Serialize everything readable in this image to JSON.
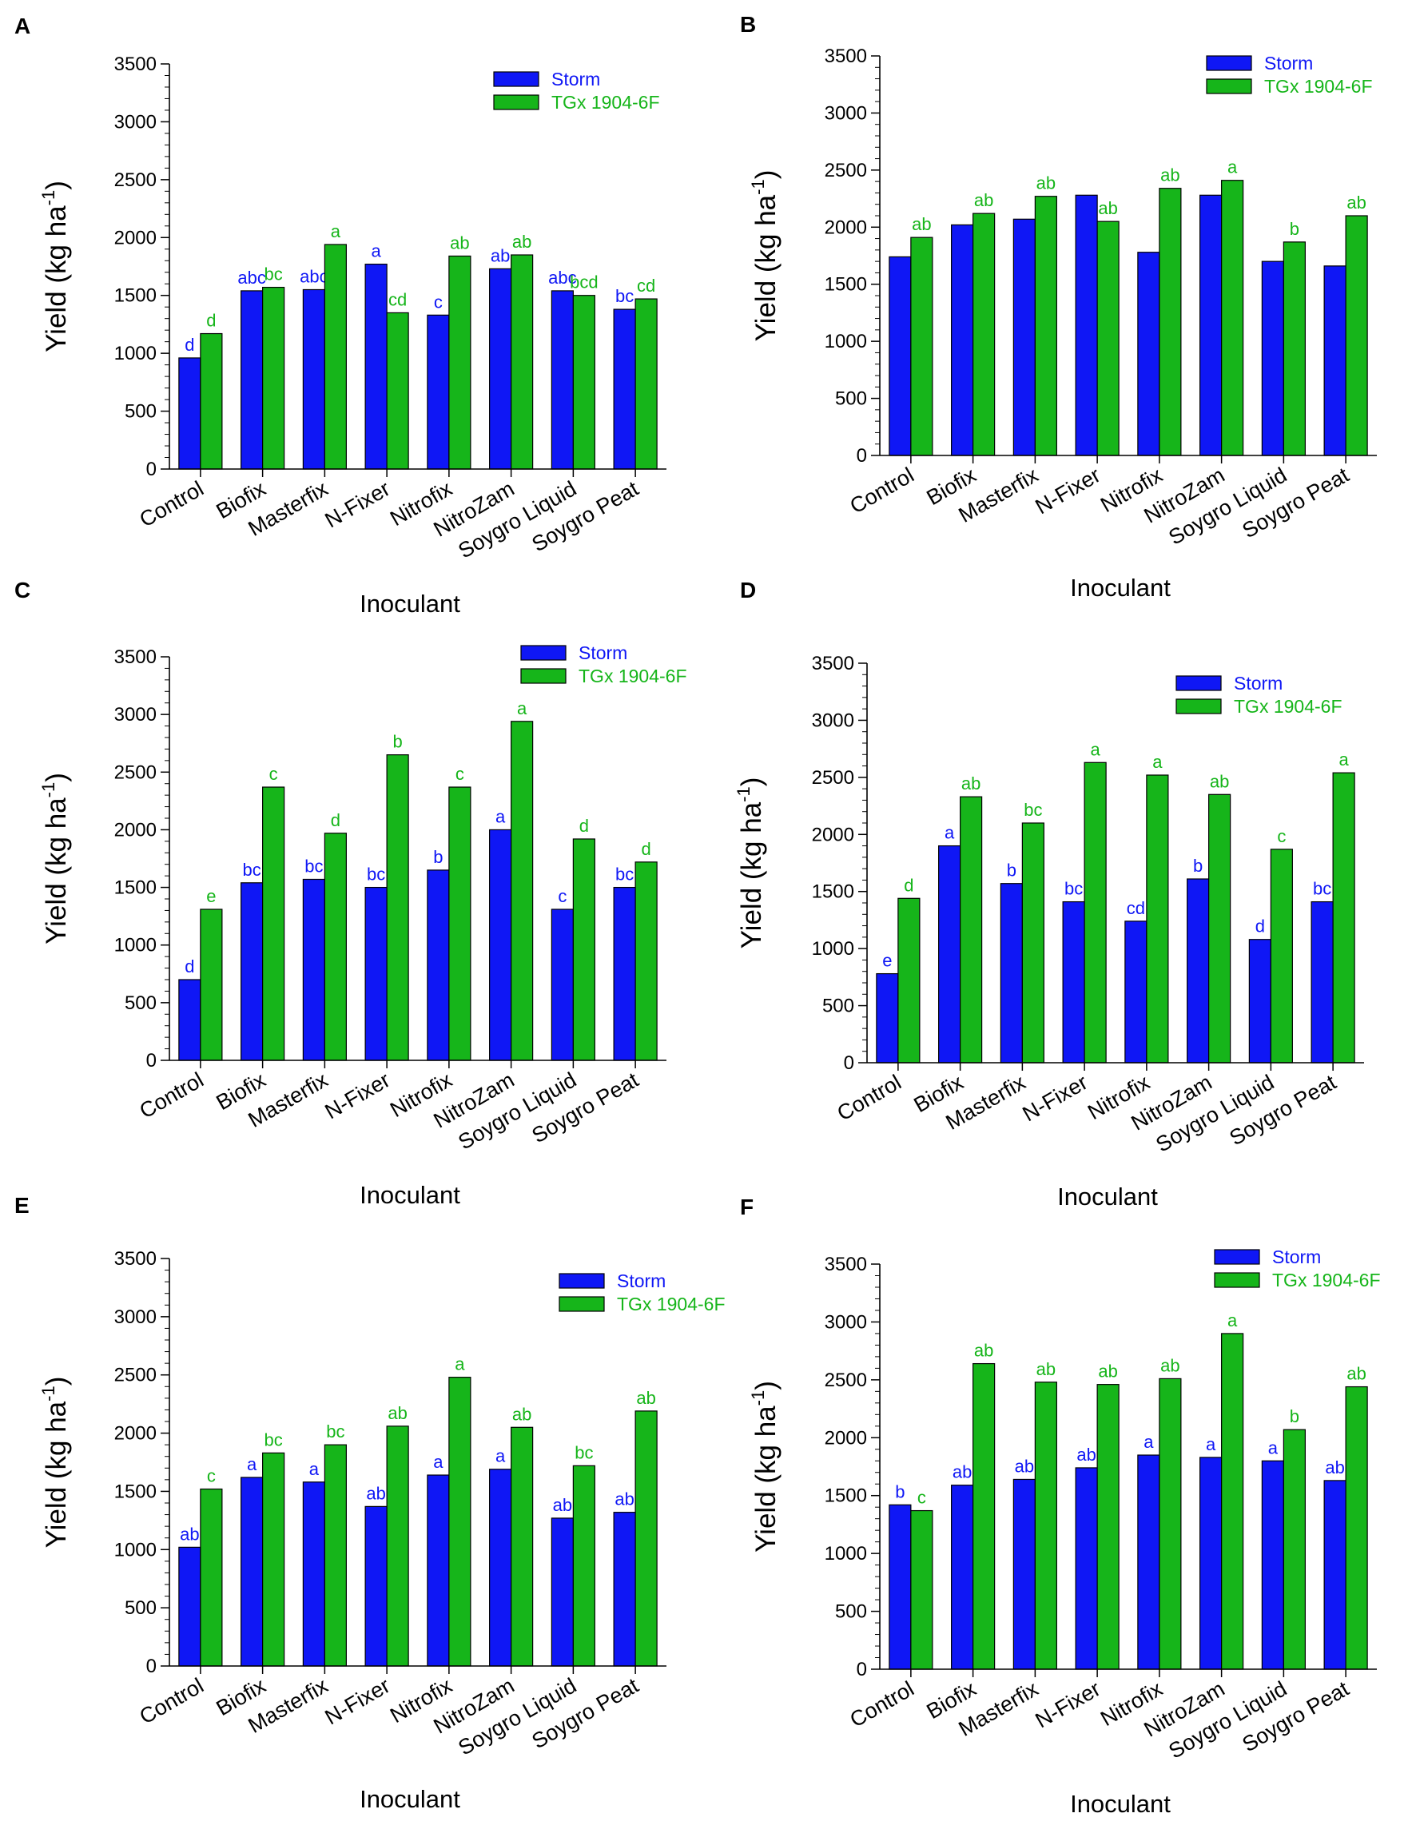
{
  "figure": {
    "series_colors": {
      "storm": "#0f17f5",
      "tgx": "#16b51a"
    }
  },
  "chart_data": [
    {
      "panel": "A",
      "type": "bar",
      "ylabel": "Yield (kg ha",
      "ylabel_sup": "-1",
      "ylabel_close": ")",
      "xlabel": "Inoculant",
      "ylim": [
        0,
        3500
      ],
      "yticks": [
        "0",
        "500",
        "1000",
        "1500",
        "2000",
        "2500",
        "3000",
        "3500"
      ],
      "categories": [
        "Control",
        "Biofix",
        "Masterfix",
        "N-Fixer",
        "Nitrofix",
        "NitroZam",
        "Soygro Liquid",
        "Soygro Peat"
      ],
      "series": [
        {
          "name": "Storm",
          "values": [
            960,
            1540,
            1550,
            1770,
            1330,
            1730,
            1540,
            1380
          ],
          "letters": [
            "d",
            "abc",
            "abc",
            "a",
            "c",
            "ab",
            "abc",
            "bc"
          ]
        },
        {
          "name": "TGx 1904-6F",
          "values": [
            1170,
            1570,
            1940,
            1350,
            1840,
            1850,
            1500,
            1470
          ],
          "letters": [
            "d",
            "bc",
            "a",
            "cd",
            "ab",
            "ab",
            "bcd",
            "cd"
          ]
        }
      ]
    },
    {
      "panel": "B",
      "type": "bar",
      "ylabel": "Yield (kg ha",
      "ylabel_sup": "-1",
      "ylabel_close": ")",
      "xlabel": "Inoculant",
      "ylim": [
        0,
        3500
      ],
      "yticks": [
        "0",
        "500",
        "1000",
        "1500",
        "2000",
        "2500",
        "3000",
        "3500"
      ],
      "categories": [
        "Control",
        "Biofix",
        "Masterfix",
        "N-Fixer",
        "Nitrofix",
        "NitroZam",
        "Soygro Liquid",
        "Soygro Peat"
      ],
      "series": [
        {
          "name": "Storm",
          "values": [
            1740,
            2020,
            2070,
            2280,
            1780,
            2280,
            1700,
            1660
          ],
          "letters": [
            "",
            "",
            "",
            "",
            "",
            "",
            "",
            ""
          ]
        },
        {
          "name": "TGx 1904-6F",
          "values": [
            1910,
            2120,
            2270,
            2050,
            2340,
            2410,
            1870,
            2100
          ],
          "letters": [
            "ab",
            "ab",
            "ab",
            "ab",
            "ab",
            "a",
            "b",
            "ab"
          ]
        }
      ]
    },
    {
      "panel": "C",
      "type": "bar",
      "ylabel": "Yield (kg ha",
      "ylabel_sup": "-1",
      "ylabel_close": ")",
      "xlabel": "Inoculant",
      "ylim": [
        0,
        3500
      ],
      "yticks": [
        "0",
        "500",
        "1000",
        "1500",
        "2000",
        "2500",
        "3000",
        "3500"
      ],
      "categories": [
        "Control",
        "Biofix",
        "Masterfix",
        "N-Fixer",
        "Nitrofix",
        "NitroZam",
        "Soygro Liquid",
        "Soygro Peat"
      ],
      "series": [
        {
          "name": "Storm",
          "values": [
            700,
            1540,
            1570,
            1500,
            1650,
            2000,
            1310,
            1500
          ],
          "letters": [
            "d",
            "bc",
            "bc",
            "bc",
            "b",
            "a",
            "c",
            "bc"
          ]
        },
        {
          "name": "TGx 1904-6F",
          "values": [
            1310,
            2370,
            1970,
            2650,
            2370,
            2940,
            1920,
            1720
          ],
          "letters": [
            "e",
            "c",
            "d",
            "b",
            "c",
            "a",
            "d",
            "d"
          ]
        }
      ]
    },
    {
      "panel": "D",
      "type": "bar",
      "ylabel": "Yield (kg ha",
      "ylabel_sup": "-1",
      "ylabel_close": ")",
      "xlabel": "Inoculant",
      "ylim": [
        0,
        3500
      ],
      "yticks": [
        "0",
        "500",
        "1000",
        "1500",
        "2000",
        "2500",
        "3000",
        "3500"
      ],
      "categories": [
        "Control",
        "Biofix",
        "Masterfix",
        "N-Fixer",
        "Nitrofix",
        "NitroZam",
        "Soygro Liquid",
        "Soygro Peat"
      ],
      "series": [
        {
          "name": "Storm",
          "values": [
            780,
            1900,
            1570,
            1410,
            1240,
            1610,
            1080,
            1410
          ],
          "letters": [
            "e",
            "a",
            "b",
            "bc",
            "cd",
            "b",
            "d",
            "bc"
          ]
        },
        {
          "name": "TGx 1904-6F",
          "values": [
            1440,
            2330,
            2100,
            2630,
            2520,
            2350,
            1870,
            2540
          ],
          "letters": [
            "d",
            "ab",
            "bc",
            "a",
            "a",
            "ab",
            "c",
            "a"
          ]
        }
      ]
    },
    {
      "panel": "E",
      "type": "bar",
      "ylabel": "Yield (kg ha",
      "ylabel_sup": "-1",
      "ylabel_close": ")",
      "xlabel": "Inoculant",
      "ylim": [
        0,
        3500
      ],
      "yticks": [
        "0",
        "500",
        "1000",
        "1500",
        "2000",
        "2500",
        "3000",
        "3500"
      ],
      "categories": [
        "Control",
        "Biofix",
        "Masterfix",
        "N-Fixer",
        "Nitrofix",
        "NitroZam",
        "Soygro Liquid",
        "Soygro Peat"
      ],
      "series": [
        {
          "name": "Storm",
          "values": [
            1020,
            1620,
            1580,
            1370,
            1640,
            1690,
            1270,
            1320
          ],
          "letters": [
            "ab",
            "a",
            "a",
            "ab",
            "a",
            "a",
            "ab",
            "ab"
          ]
        },
        {
          "name": "TGx 1904-6F",
          "values": [
            1520,
            1830,
            1900,
            2060,
            2480,
            2050,
            1720,
            2190
          ],
          "letters": [
            "c",
            "bc",
            "bc",
            "ab",
            "a",
            "ab",
            "bc",
            "ab"
          ]
        }
      ]
    },
    {
      "panel": "F",
      "type": "bar",
      "ylabel": "Yield (kg ha",
      "ylabel_sup": "-1",
      "ylabel_close": ")",
      "xlabel": "Inoculant",
      "ylim": [
        0,
        3500
      ],
      "yticks": [
        "0",
        "500",
        "1000",
        "1500",
        "2000",
        "2500",
        "3000",
        "3500"
      ],
      "categories": [
        "Control",
        "Biofix",
        "Masterfix",
        "N-Fixer",
        "Nitrofix",
        "NitroZam",
        "Soygro Liquid",
        "Soygro Peat"
      ],
      "series": [
        {
          "name": "Storm",
          "values": [
            1420,
            1590,
            1640,
            1740,
            1850,
            1830,
            1800,
            1630
          ],
          "letters": [
            "b",
            "ab",
            "ab",
            "ab",
            "a",
            "a",
            "a",
            "ab"
          ]
        },
        {
          "name": "TGx 1904-6F",
          "values": [
            1370,
            2640,
            2480,
            2460,
            2510,
            2900,
            2070,
            2440
          ],
          "letters": [
            "c",
            "ab",
            "ab",
            "ab",
            "ab",
            "a",
            "b",
            "ab"
          ]
        }
      ]
    }
  ]
}
